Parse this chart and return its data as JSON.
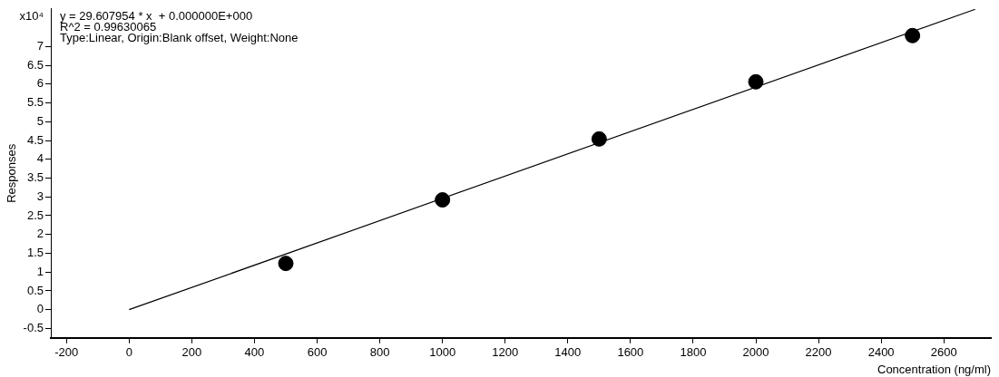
{
  "chart_data": {
    "type": "scatter",
    "xlabel": "Concentration (ng/ml)",
    "ylabel": "Responses",
    "annotations": [
      "x10⁴",
      "y = 29.607954 * x  + 0.000000E+000",
      "R^2 = 0.99630065",
      "Type:Linear, Origin:Blank offset, Weight:None"
    ],
    "series": [
      {
        "type": "scatter",
        "color": "#000000",
        "marker": "circle",
        "x": [
          500,
          1000,
          1500,
          2000,
          2500
        ],
        "values": [
          1.23,
          2.92,
          4.54,
          6.06,
          7.29
        ]
      },
      {
        "type": "line",
        "color": "#000000",
        "marker": "none",
        "x": [
          0,
          2700
        ],
        "values": [
          0,
          7.99
        ]
      }
    ],
    "xlim": [
      -250,
      2750
    ],
    "xticks": [
      -200,
      0,
      200,
      400,
      600,
      800,
      1000,
      1200,
      1400,
      1600,
      1800,
      2000,
      2200,
      2400,
      2600
    ],
    "ylim": [
      -0.75,
      8
    ],
    "yticks": [
      -0.5,
      0,
      0.5,
      1,
      1.5,
      2,
      2.5,
      3,
      3.5,
      4,
      4.5,
      5,
      5.5,
      6,
      6.5,
      7
    ],
    "grid": false,
    "legend": false
  }
}
